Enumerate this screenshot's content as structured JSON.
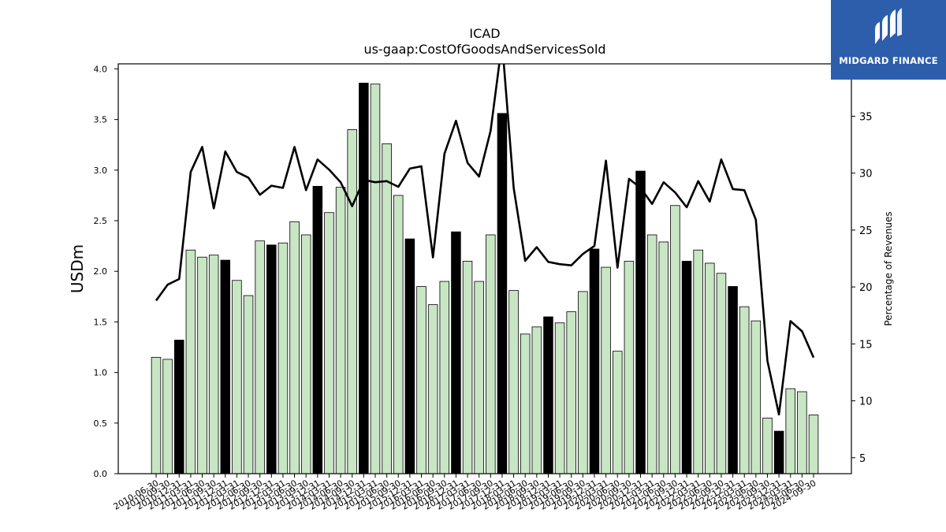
{
  "chart_data": {
    "type": "bar",
    "title": "ICAD",
    "subtitle": "us-gaap:CostOfGoodsAndServicesSold",
    "ylabel": "USDm",
    "y2label": "Percentage of Revenues",
    "ylim": [
      0,
      4.05
    ],
    "y2lim": [
      3.6,
      39.6
    ],
    "yticks": [
      "0.0",
      "0.5",
      "1.0",
      "1.5",
      "2.0",
      "2.5",
      "3.0",
      "3.5",
      "4.0"
    ],
    "y2ticks": [
      "5",
      "10",
      "15",
      "20",
      "25",
      "30",
      "35"
    ],
    "grid": false,
    "colors": {
      "light_bar": "#c8e6c4",
      "dark_bar": "#000000",
      "line": "#000000",
      "edge": "#000000"
    },
    "categories": [
      "2010-06-30",
      "2010-09-30",
      "2010-12-31",
      "2011-03-31",
      "2011-06-30",
      "2011-09-30",
      "2011-12-31",
      "2012-03-31",
      "2012-06-30",
      "2012-09-30",
      "2012-12-31",
      "2013-03-31",
      "2013-06-30",
      "2013-09-30",
      "2013-12-31",
      "2014-03-31",
      "2014-06-30",
      "2014-09-30",
      "2014-12-31",
      "2015-03-31",
      "2015-06-30",
      "2015-09-30",
      "2015-12-31",
      "2016-03-31",
      "2016-06-30",
      "2016-09-30",
      "2016-12-31",
      "2017-03-31",
      "2017-06-30",
      "2017-09-30",
      "2017-12-31",
      "2018-03-31",
      "2018-06-30",
      "2018-09-30",
      "2018-12-31",
      "2019-03-31",
      "2019-06-30",
      "2019-09-30",
      "2019-12-31",
      "2020-03-31",
      "2020-06-30",
      "2020-09-30",
      "2020-12-31",
      "2021-03-31",
      "2021-06-30",
      "2021-09-30",
      "2021-12-31",
      "2022-03-31",
      "2022-06-30",
      "2022-09-30",
      "2022-12-31",
      "2023-03-31",
      "2023-06-30",
      "2023-09-30",
      "2023-12-31",
      "2024-03-31",
      "2024-06-30",
      "2024-09-30"
    ],
    "series": [
      {
        "type": "bar",
        "values": [
          1.15,
          1.13,
          1.32,
          2.21,
          2.14,
          2.16,
          2.11,
          1.91,
          1.76,
          2.3,
          2.26,
          2.28,
          2.49,
          2.36,
          2.84,
          2.58,
          2.83,
          3.4,
          3.86,
          3.85,
          3.26,
          2.75,
          2.32,
          1.85,
          1.67,
          1.9,
          2.39,
          2.1,
          1.9,
          2.36,
          3.56,
          1.81,
          1.38,
          1.45,
          1.55,
          1.49,
          1.6,
          1.8,
          2.22,
          2.04,
          1.21,
          2.1,
          2.99,
          2.36,
          2.29,
          2.65,
          2.1,
          2.21,
          2.08,
          1.98,
          1.85,
          1.65,
          1.51,
          0.55,
          0.42,
          0.84,
          0.81,
          0.58
        ],
        "highlight": [
          false,
          false,
          true,
          false,
          false,
          false,
          true,
          false,
          false,
          false,
          true,
          false,
          false,
          false,
          true,
          false,
          false,
          false,
          true,
          false,
          false,
          false,
          true,
          false,
          false,
          false,
          true,
          false,
          false,
          false,
          true,
          false,
          false,
          false,
          true,
          false,
          false,
          false,
          true,
          false,
          false,
          false,
          true,
          false,
          false,
          false,
          true,
          false,
          false,
          false,
          true,
          false,
          false,
          false,
          true,
          false,
          false,
          false
        ]
      },
      {
        "type": "line",
        "axis": "right",
        "values": [
          18.8,
          20.2,
          20.7,
          30.1,
          32.3,
          26.9,
          31.9,
          30.1,
          29.6,
          28.1,
          28.9,
          28.7,
          32.3,
          28.5,
          31.2,
          30.3,
          29.2,
          27.1,
          29.4,
          29.2,
          29.3,
          28.8,
          30.4,
          30.6,
          22.6,
          31.7,
          34.6,
          30.9,
          29.7,
          33.7,
          41.5,
          28.7,
          22.3,
          23.5,
          22.2,
          22.0,
          21.9,
          22.9,
          23.6,
          31.1,
          21.7,
          29.5,
          28.7,
          27.3,
          29.2,
          28.3,
          27.0,
          29.3,
          27.5,
          31.2,
          28.6,
          28.5,
          25.9,
          13.5,
          8.8,
          17.0,
          16.1,
          13.8
        ]
      }
    ]
  },
  "logo": {
    "text": "MIDGARD FINANCE",
    "color": "#2d5eac"
  }
}
